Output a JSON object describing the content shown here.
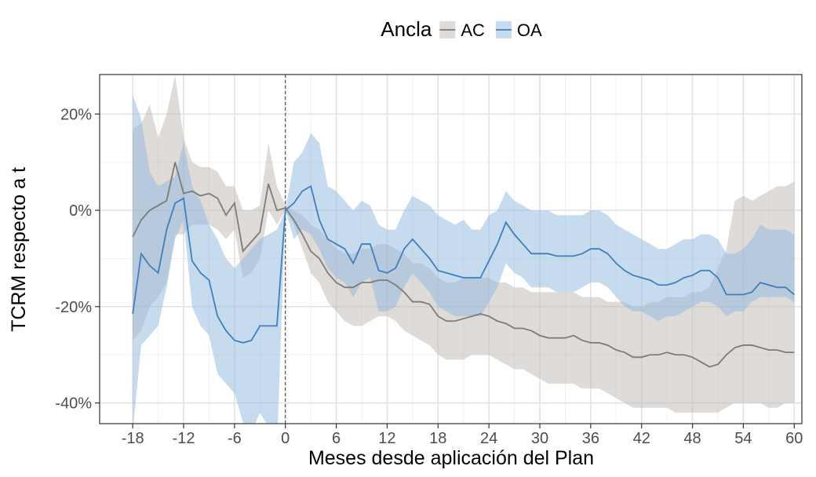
{
  "chart_data": {
    "type": "line-band",
    "x_label": "Meses desde aplicación del Plan",
    "y_label": "TCRM respecto a t",
    "legend_title": "Ancla",
    "legend_position": "top",
    "grid": true,
    "vline": 0,
    "xlim": [
      -21.9,
      60.9
    ],
    "ylim": [
      -44.3,
      28.2
    ],
    "xticks": [
      -18,
      -12,
      -6,
      0,
      6,
      12,
      18,
      24,
      30,
      36,
      42,
      48,
      54,
      60
    ],
    "yticks": [
      {
        "value": 20,
        "label": "20%"
      },
      {
        "value": 0,
        "label": "0%"
      },
      {
        "value": -20,
        "label": "-20%"
      },
      {
        "value": -40,
        "label": "-40%"
      }
    ],
    "x": [
      -18,
      -17,
      -16,
      -15,
      -14,
      -13,
      -12,
      -11,
      -10,
      -9,
      -8,
      -7,
      -6,
      -5,
      -4,
      -3,
      -2,
      -1,
      0,
      1,
      2,
      3,
      4,
      5,
      6,
      7,
      8,
      9,
      10,
      11,
      12,
      13,
      14,
      15,
      16,
      17,
      18,
      19,
      20,
      21,
      22,
      23,
      24,
      25,
      26,
      27,
      28,
      29,
      30,
      31,
      32,
      33,
      34,
      35,
      36,
      37,
      38,
      39,
      40,
      41,
      42,
      43,
      44,
      45,
      46,
      47,
      48,
      49,
      50,
      51,
      52,
      53,
      54,
      55,
      56,
      57,
      58,
      59,
      60
    ],
    "series": [
      {
        "name": "AC",
        "color": "#7f7b77",
        "band_color": "#bdb8b2",
        "values": [
          -5.5,
          -2,
          0,
          1,
          2,
          10,
          3.5,
          4,
          3,
          3.5,
          2.5,
          -1,
          1.5,
          -8.5,
          -6.5,
          -4.5,
          5.5,
          0,
          0.5,
          -2,
          -5,
          -8.5,
          -10,
          -13,
          -15,
          -16,
          -16,
          -15,
          -15,
          -14.5,
          -14.5,
          -15.5,
          -17,
          -19,
          -19,
          -19.5,
          -22,
          -23,
          -23,
          -22.5,
          -22,
          -21.5,
          -22,
          -23,
          -23.5,
          -24.5,
          -24.5,
          -25,
          -26,
          -26.5,
          -26.5,
          -26.5,
          -26,
          -27,
          -27.5,
          -27.5,
          -28,
          -29,
          -29.5,
          -30.5,
          -30.5,
          -30,
          -30,
          -29.5,
          -30,
          -30,
          -30.5,
          -31.5,
          -32.5,
          -32,
          -30,
          -28.5,
          -28,
          -28,
          -28.5,
          -29,
          -29,
          -29.5,
          -29.5
        ],
        "upper": [
          17,
          18,
          22,
          15,
          20,
          28,
          15,
          10,
          9,
          9,
          8,
          5,
          5,
          0,
          0,
          1,
          14,
          5,
          1,
          0,
          -1,
          -3,
          -4,
          -6,
          -8,
          -9,
          -9,
          -8,
          -8,
          -7,
          -7,
          -8,
          -9,
          -11,
          -11,
          -12,
          -14,
          -15,
          -15,
          -14,
          -14,
          -14,
          -14,
          -15,
          -15,
          -16,
          -16,
          -17,
          -17,
          -17,
          -17,
          -17,
          -17,
          -18,
          -18,
          -18,
          -19,
          -19,
          -19,
          -20,
          -20,
          -19,
          -19,
          -18,
          -18,
          -18,
          -17,
          -17,
          -16,
          -12,
          -8,
          2,
          3,
          2,
          3,
          4,
          5,
          5,
          6
        ],
        "lower": [
          -27,
          -25,
          -20,
          -18,
          -15,
          -5,
          -5,
          -3,
          -3,
          -3,
          -4,
          -6,
          -4,
          -14,
          -13,
          -10,
          0,
          -3,
          0,
          -3,
          -8,
          -13,
          -15,
          -19,
          -21,
          -23,
          -24,
          -24,
          -23,
          -22,
          -22,
          -23,
          -25,
          -26,
          -27,
          -28,
          -30,
          -31,
          -31,
          -31,
          -30,
          -30,
          -30,
          -31,
          -32,
          -33,
          -33,
          -34,
          -35,
          -36,
          -36,
          -36,
          -36,
          -37,
          -37,
          -37,
          -38,
          -39,
          -40,
          -41,
          -41,
          -41,
          -41,
          -41,
          -42,
          -42,
          -42,
          -42,
          -42,
          -42,
          -41,
          -40,
          -40,
          -40,
          -40,
          -41,
          -41,
          -40,
          -40
        ]
      },
      {
        "name": "OA",
        "color": "#3f7fbd",
        "band_color": "#8fb8df",
        "values": [
          -21.5,
          -9,
          -11.5,
          -13,
          -4,
          1.5,
          2.5,
          -10.5,
          -13,
          -14.5,
          -22,
          -25,
          -27,
          -27.5,
          -27,
          -24,
          -24,
          -24,
          0,
          1.5,
          4,
          5,
          -2,
          -6,
          -7,
          -8,
          -11,
          -7,
          -7,
          -12.5,
          -13,
          -12,
          -8,
          -6,
          -8,
          -10,
          -12.5,
          -13,
          -13.5,
          -14,
          -14,
          -14,
          -10.5,
          -7,
          -2.5,
          -5,
          -7,
          -9,
          -9,
          -9,
          -9.5,
          -9.5,
          -9.5,
          -9,
          -8,
          -8,
          -9,
          -11,
          -12.5,
          -13.5,
          -14,
          -14.5,
          -15.5,
          -15.5,
          -15,
          -14,
          -13.5,
          -12.5,
          -12.5,
          -14,
          -17.5,
          -17.5,
          -17.5,
          -17,
          -15,
          -15.5,
          -16,
          -16,
          -17.5
        ],
        "upper": [
          24,
          19,
          8,
          5,
          6,
          7,
          14,
          5,
          2,
          -3,
          -6,
          -10,
          -12,
          -10,
          -8,
          -6,
          -5,
          -4,
          0,
          10,
          12,
          16,
          14,
          5,
          4,
          2,
          0,
          2,
          1,
          -3,
          -4,
          -4,
          0,
          3,
          2,
          1,
          -1,
          -2,
          -3,
          -2,
          -4,
          -4,
          -1,
          0,
          4,
          2,
          1,
          0,
          0,
          0,
          -1,
          -1,
          -1,
          -1,
          0,
          0,
          -1,
          -3,
          -4,
          -5,
          -6,
          -7,
          -8,
          -8,
          -7,
          -6,
          -6,
          -5,
          -5,
          -6,
          -9,
          -9,
          -8,
          -6,
          -3,
          -4,
          -4,
          -4,
          -5
        ],
        "lower": [
          -46,
          -28,
          -26,
          -24,
          -16,
          -6,
          -2,
          -20,
          -24,
          -26,
          -34,
          -36,
          -38,
          -44,
          -46,
          -42,
          -45,
          -50,
          0,
          -6,
          -4,
          -5,
          -8,
          -12,
          -14,
          -15,
          -18,
          -15,
          -14,
          -21,
          -21,
          -20,
          -16,
          -13,
          -15,
          -17,
          -20,
          -21,
          -22,
          -22,
          -22,
          -22,
          -19,
          -16,
          -11,
          -13,
          -14,
          -16,
          -16,
          -16,
          -17,
          -17,
          -17,
          -16,
          -15,
          -15,
          -16,
          -18,
          -20,
          -21,
          -21,
          -22,
          -23,
          -22,
          -22,
          -21,
          -20,
          -19,
          -19,
          -20,
          -22,
          -21,
          -21,
          -19,
          -18,
          -18,
          -18,
          -18,
          -19
        ]
      }
    ]
  }
}
